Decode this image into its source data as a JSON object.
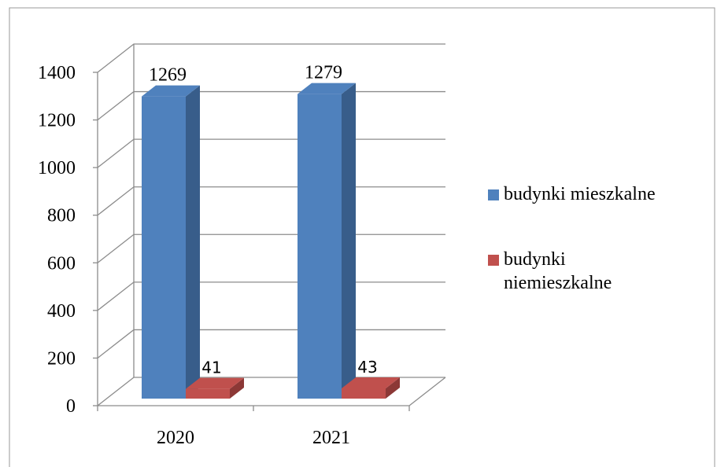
{
  "chart_data": {
    "type": "bar3d",
    "categories": [
      "2020",
      "2021"
    ],
    "series": [
      {
        "name": "budynki mieszkalne",
        "color": "#4f81bd",
        "side": "#385d8a",
        "values": [
          1269,
          1279
        ]
      },
      {
        "name": "budynki niemieszkalne",
        "color": "#c0504d",
        "side": "#8c3836",
        "values": [
          41,
          43
        ]
      }
    ],
    "ylim": [
      0,
      1400
    ],
    "yticks": [
      0,
      200,
      400,
      600,
      800,
      1000,
      1200,
      1400
    ],
    "grid": true,
    "legend": "right"
  }
}
